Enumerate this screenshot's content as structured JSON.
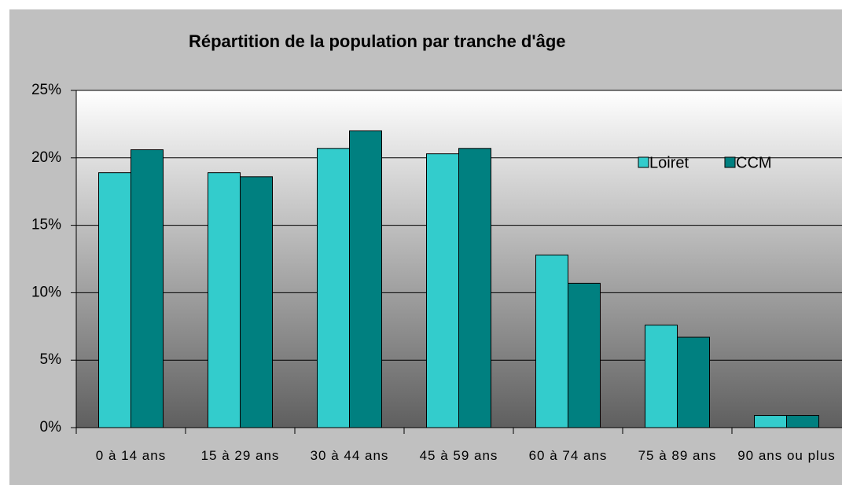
{
  "chart_data": {
    "type": "bar",
    "title": "Répartition de la population par tranche d'âge",
    "categories": [
      "0 à 14 ans",
      "15 à 29 ans",
      "30 à 44 ans",
      "45 à 59 ans",
      "60 à 74 ans",
      "75 à 89 ans",
      "90 ans ou plus"
    ],
    "series": [
      {
        "name": "Loiret",
        "color": "#33cccc",
        "values": [
          18.9,
          18.9,
          20.7,
          20.3,
          12.8,
          7.6,
          0.9
        ]
      },
      {
        "name": "CCM",
        "color": "#008080",
        "values": [
          20.6,
          18.6,
          22.0,
          20.7,
          10.7,
          6.7,
          0.9
        ]
      }
    ],
    "ylim": [
      0,
      25
    ],
    "yticks": [
      {
        "value": 0,
        "label": "0%"
      },
      {
        "value": 5,
        "label": "5%"
      },
      {
        "value": 10,
        "label": "10%"
      },
      {
        "value": 15,
        "label": "15%"
      },
      {
        "value": 20,
        "label": "20%"
      },
      {
        "value": 25,
        "label": "25%"
      }
    ],
    "grid": true,
    "legend": "right"
  }
}
